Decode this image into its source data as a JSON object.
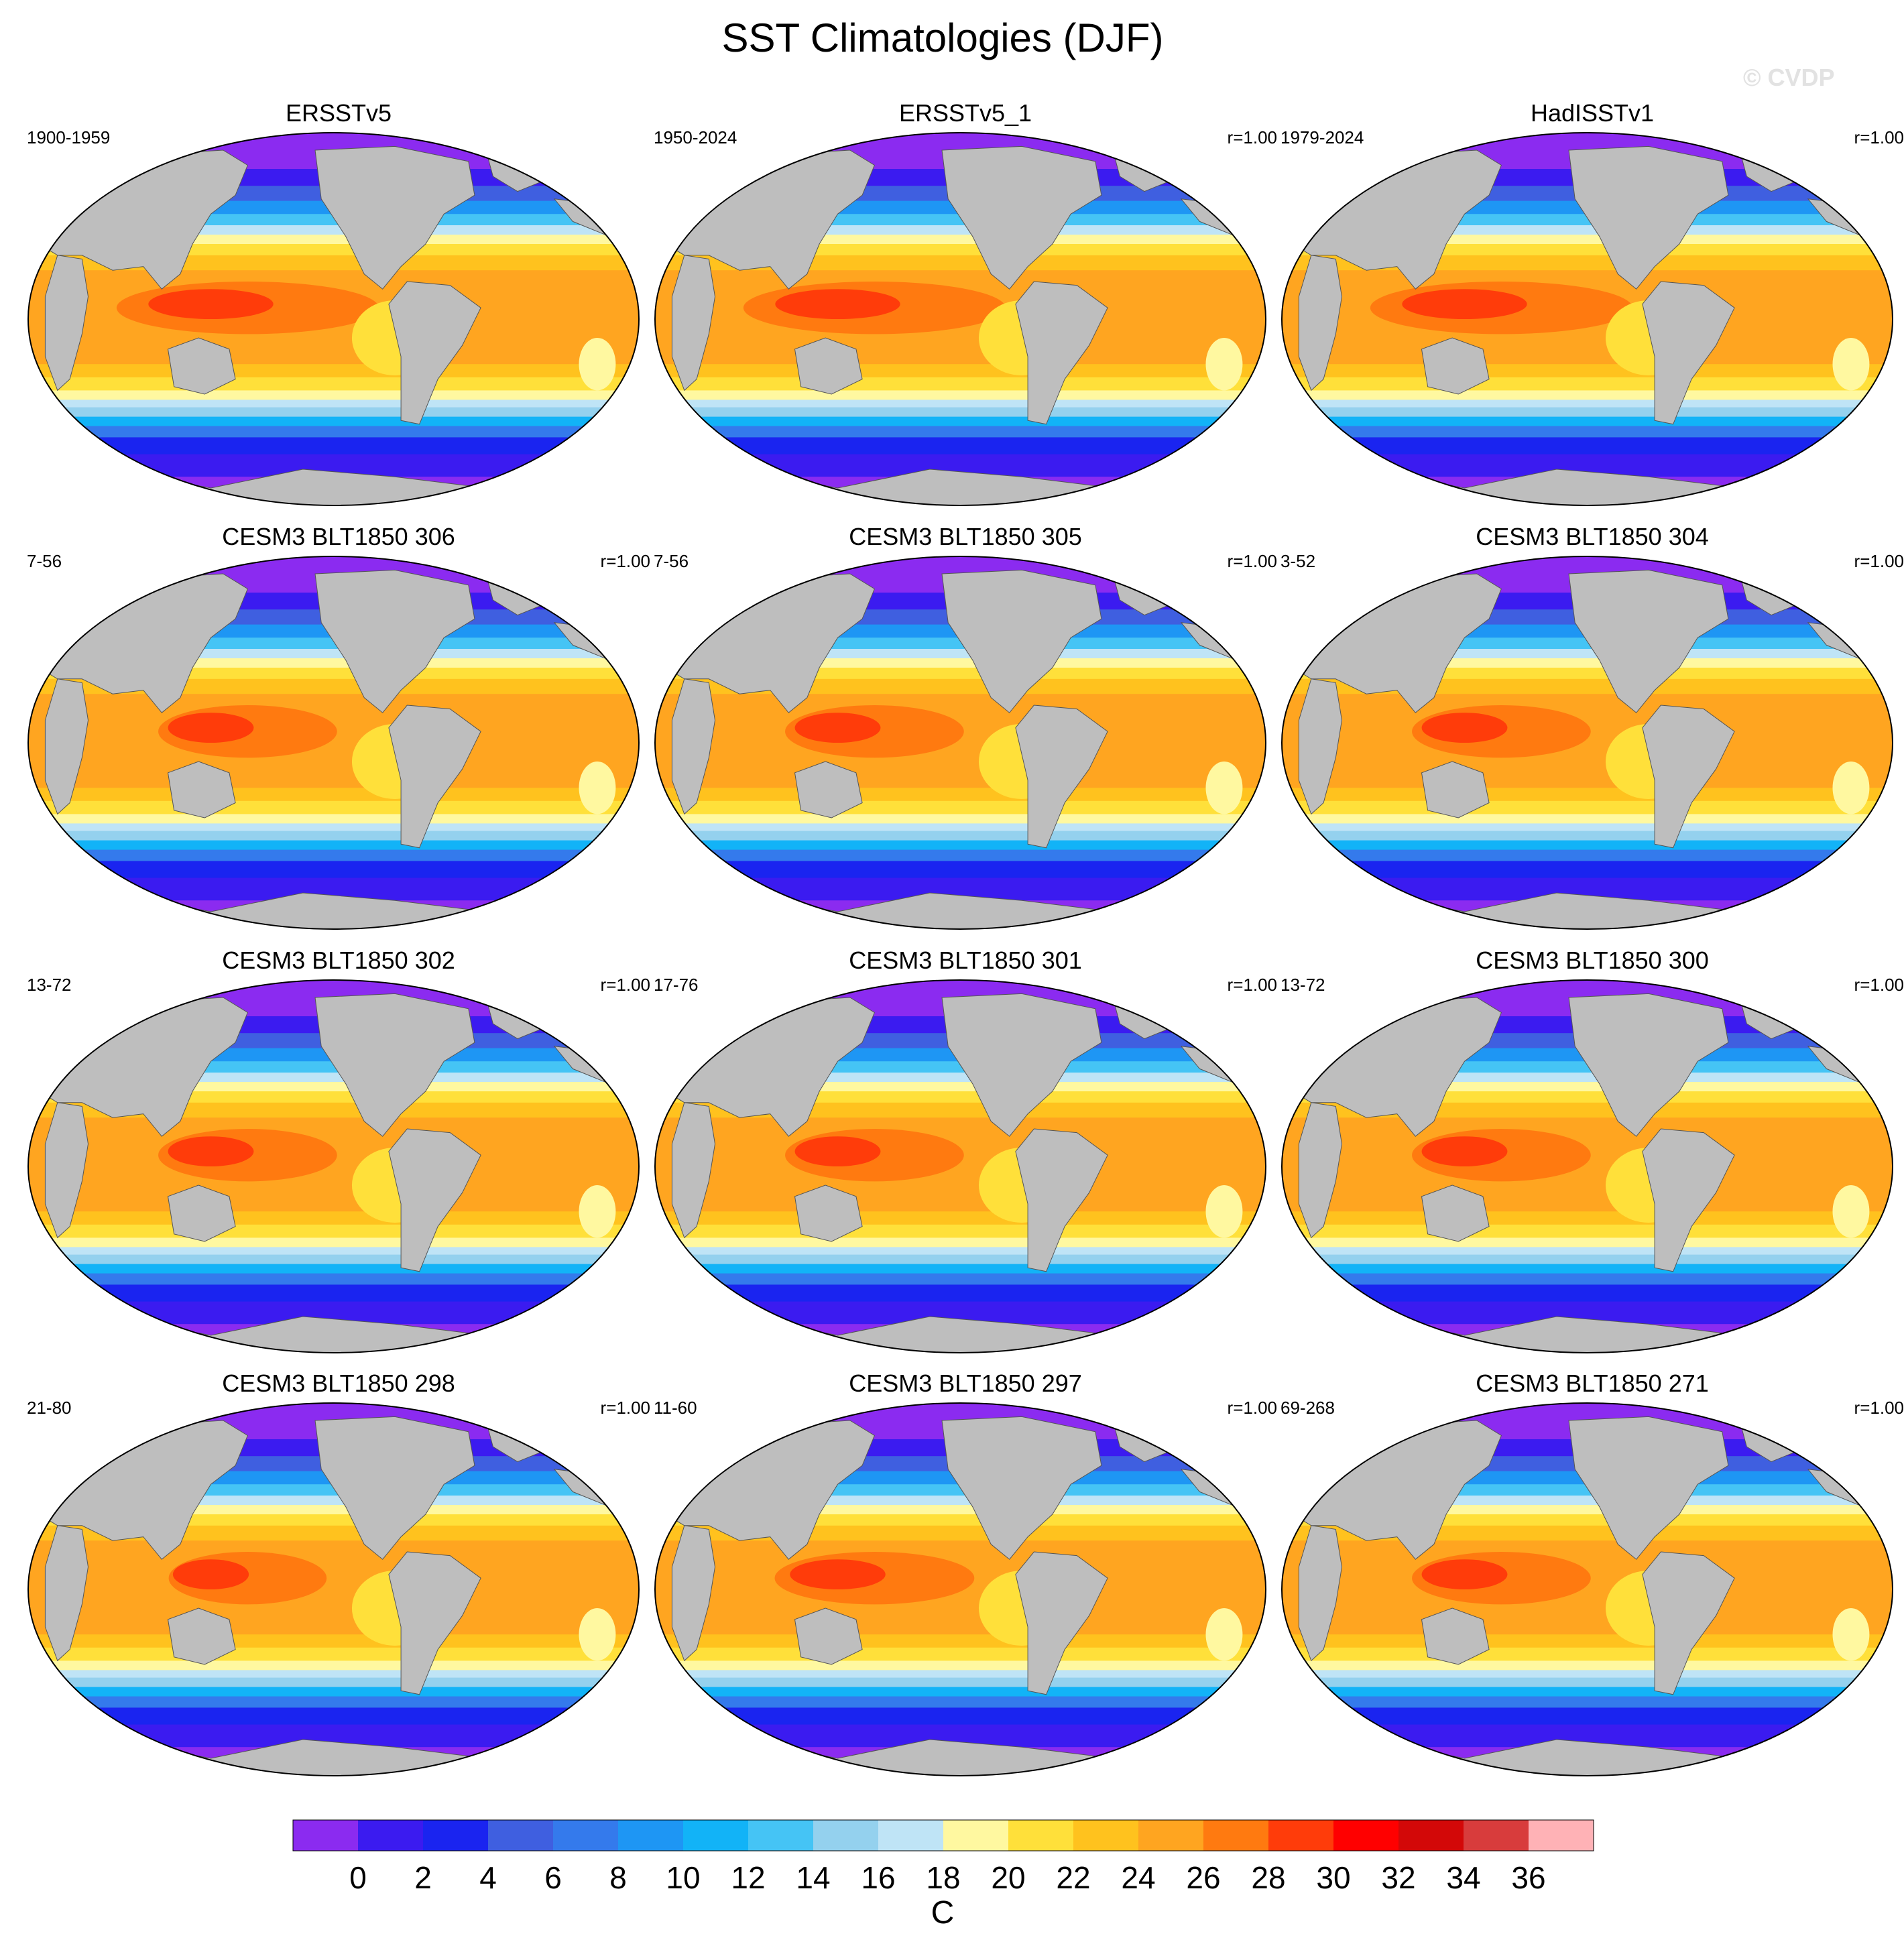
{
  "title": "SST Climatologies (DJF)",
  "watermark": "© CVDP",
  "panels": [
    {
      "title": "ERSSTv5",
      "period": "1900-1959",
      "corr": "",
      "warm_pool": 1.0
    },
    {
      "title": "ERSSTv5_1",
      "period": "1950-2024",
      "corr": "r=1.00",
      "warm_pool": 1.0
    },
    {
      "title": "HadISSTv1",
      "period": "1979-2024",
      "corr": "r=1.00",
      "warm_pool": 1.0
    },
    {
      "title": "CESM3 BLT1850 306",
      "period": "7-56",
      "corr": "r=1.00",
      "warm_pool": 0.6
    },
    {
      "title": "CESM3 BLT1850 305",
      "period": "7-56",
      "corr": "r=1.00",
      "warm_pool": 0.6
    },
    {
      "title": "CESM3 BLT1850 304",
      "period": "3-52",
      "corr": "r=1.00",
      "warm_pool": 0.6
    },
    {
      "title": "CESM3 BLT1850 302",
      "period": "13-72",
      "corr": "r=1.00",
      "warm_pool": 0.6
    },
    {
      "title": "CESM3 BLT1850 301",
      "period": "17-76",
      "corr": "r=1.00",
      "warm_pool": 0.6
    },
    {
      "title": "CESM3 BLT1850 300",
      "period": "13-72",
      "corr": "r=1.00",
      "warm_pool": 0.6
    },
    {
      "title": "CESM3 BLT1850 298",
      "period": "21-80",
      "corr": "r=1.00",
      "warm_pool": 0.5
    },
    {
      "title": "CESM3 BLT1850 297",
      "period": "11-60",
      "corr": "r=1.00",
      "warm_pool": 0.7
    },
    {
      "title": "CESM3 BLT1850 271",
      "period": "69-268",
      "corr": "r=1.00",
      "warm_pool": 0.6
    }
  ],
  "colorbar": {
    "unit": "C",
    "labels": [
      "0",
      "2",
      "4",
      "6",
      "8",
      "10",
      "12",
      "14",
      "16",
      "18",
      "20",
      "22",
      "24",
      "26",
      "28",
      "30",
      "32",
      "34",
      "36"
    ],
    "colors": [
      "#8B2BF0",
      "#3B1BF0",
      "#1A24F0",
      "#3F5FE0",
      "#347AEC",
      "#1E96F4",
      "#12B3F7",
      "#45C4F5",
      "#94D1EE",
      "#BFE4F6",
      "#FFF8A0",
      "#FFE03A",
      "#FFC21E",
      "#FFA520",
      "#FF7A10",
      "#FF3C0A",
      "#FF0000",
      "#D30808",
      "#D83C3C",
      "#FFB2B6"
    ]
  },
  "land_color": "#BEBEBE"
}
